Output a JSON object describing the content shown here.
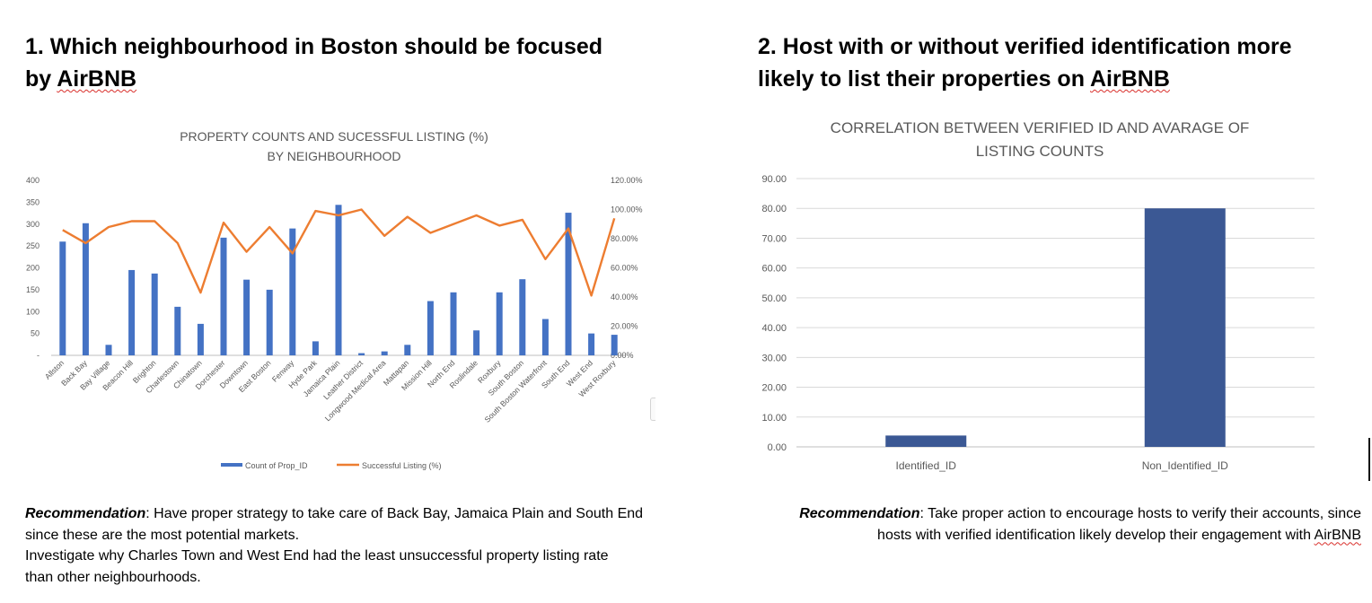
{
  "section1": {
    "heading_line1": "1. Which neighbourhood in Boston should be focused",
    "heading_line2_prefix": "by ",
    "heading_line2_word": "AirBNB",
    "reco_label": "Recommendation",
    "reco_text": ": Have proper strategy to take care of Back Bay, Jamaica Plain and South End since these are the most potential markets.",
    "reco_text2": "Investigate why Charles Town and West End had the least unsuccessful property listing rate than other neighbourhoods."
  },
  "section2": {
    "heading_line1": "2. Host with or without verified identification more",
    "heading_line2_prefix": "likely to list their properties on ",
    "heading_line2_word": "AirBNB",
    "reco_label": "Recommendation",
    "reco_text1": ": Take proper action to encourage hosts to verify their accounts, since",
    "reco_text2_prefix": "hosts with verified identification likely develop their engagement with ",
    "reco_text2_word": "AirBNB"
  },
  "colors": {
    "bar_blue": "#4472c4",
    "line_orange": "#ed7d31",
    "bar_navy": "#3b5894",
    "grid": "#d9d9d9"
  },
  "chart_data": [
    {
      "type": "bar+line",
      "title_line1": "PROPERTY COUNTS AND SUCESSFUL LISTING (%)",
      "title_line2": "BY NEIGHBOURHOOD",
      "categories": [
        "Allston",
        "Back Bay",
        "Bay Village",
        "Beacon Hill",
        "Brighton",
        "Charlestown",
        "Chinatown",
        "Dorchester",
        "Downtown",
        "East Boston",
        "Fenway",
        "Hyde Park",
        "Jamaica Plain",
        "Leather District",
        "Longwood Medical Area",
        "Mattapan",
        "Mission Hill",
        "North End",
        "Roslindale",
        "Roxbury",
        "South Boston",
        "South Boston Waterfront",
        "South End",
        "West End",
        "West Roxbury"
      ],
      "series": [
        {
          "name": "Count of Prop_ID",
          "type": "bar",
          "axis": "left",
          "values": [
            260,
            302,
            24,
            195,
            187,
            111,
            72,
            269,
            173,
            150,
            290,
            32,
            344,
            5,
            9,
            24,
            124,
            144,
            57,
            144,
            174,
            83,
            326,
            50,
            47
          ]
        },
        {
          "name": "Successful Listing (%)",
          "type": "line",
          "axis": "right",
          "values": [
            86,
            77,
            88,
            92,
            92,
            77,
            43,
            91,
            71,
            88,
            70,
            99,
            96,
            100,
            82,
            95,
            84,
            90,
            96,
            89,
            93,
            66,
            87,
            41,
            94
          ]
        }
      ],
      "left_ticks": [
        "400",
        "350",
        "300",
        "250",
        "200",
        "150",
        "100",
        "50",
        "-"
      ],
      "right_ticks": [
        "120.00%",
        "100.00%",
        "80.00%",
        "60.00%",
        "40.00%",
        "20.00%",
        "0.00%"
      ],
      "ylim_left": [
        0,
        400
      ],
      "ylim_right": [
        0,
        120
      ],
      "legend_position": "bottom",
      "grid": false
    },
    {
      "type": "bar",
      "title_line1": "CORRELATION BETWEEN VERIFIED ID AND AVARAGE OF",
      "title_line2": "LISTING COUNTS",
      "categories": [
        "Identified_ID",
        "Non_Identified_ID"
      ],
      "values": [
        3.8,
        80.0
      ],
      "y_ticks": [
        "90.00",
        "80.00",
        "70.00",
        "60.00",
        "50.00",
        "40.00",
        "30.00",
        "20.00",
        "10.00",
        "0.00"
      ],
      "ylim": [
        0,
        90
      ],
      "grid": true
    }
  ]
}
